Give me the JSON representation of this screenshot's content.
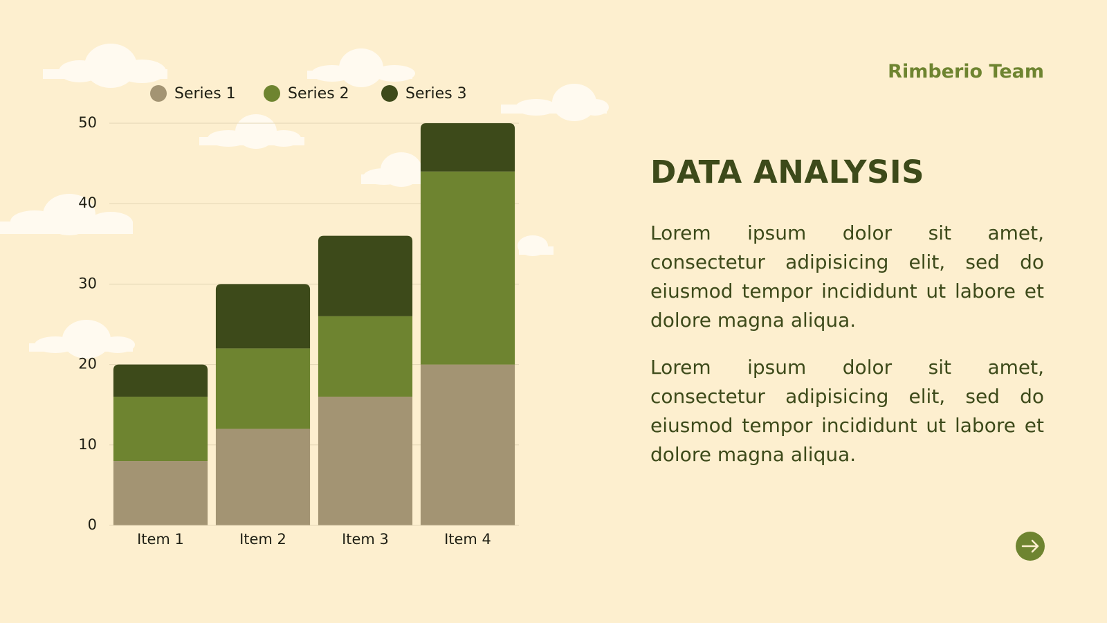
{
  "brand": "Rimberio Team",
  "heading": "DATA ANALYSIS",
  "paragraphs": [
    "Lorem ipsum dolor sit amet, consectetur adipisicing elit, sed do eiusmod tempor incididunt ut labore et dolore magna aliqua.",
    "Lorem ipsum dolor sit amet, consectetur adipisicing elit, sed do eiusmod tempor incididunt ut labore et dolore magna aliqua."
  ],
  "chart_data": {
    "type": "bar",
    "stacked": true,
    "categories": [
      "Item 1",
      "Item 2",
      "Item 3",
      "Item 4"
    ],
    "series": [
      {
        "name": "Series 1",
        "color": "#a39473",
        "values": [
          8,
          12,
          16,
          20
        ]
      },
      {
        "name": "Series 2",
        "color": "#6e8430",
        "values": [
          8,
          10,
          10,
          24
        ]
      },
      {
        "name": "Series 3",
        "color": "#3d4a1a",
        "values": [
          4,
          8,
          10,
          6
        ]
      }
    ],
    "ylim": [
      0,
      50
    ],
    "yticks": [
      0,
      10,
      20,
      30,
      40,
      50
    ],
    "grid": true,
    "legend": "top"
  }
}
